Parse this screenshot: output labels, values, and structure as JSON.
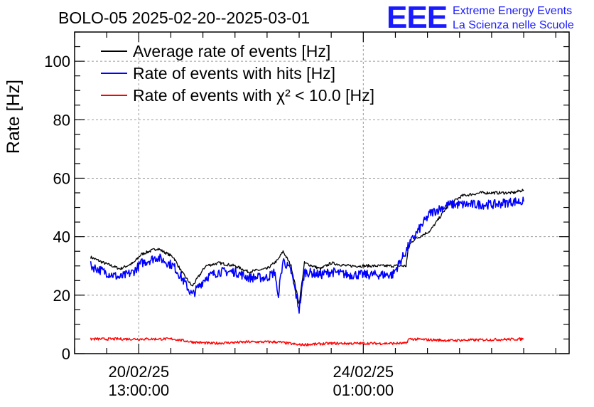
{
  "logo": {
    "mark": "EEE",
    "line1": "Extreme Energy Events",
    "line2": "La Scienza nelle Scuole",
    "color": "#1a1aff"
  },
  "chart_data": {
    "type": "line",
    "title": "BOLO-05 2025-02-20--2025-03-01",
    "ylabel": "Rate [Hz]",
    "xlabel": "",
    "ylim": [
      0,
      110
    ],
    "x_range_hours_note": "",
    "yticks": [
      0,
      20,
      40,
      60,
      80,
      100
    ],
    "xticks": [
      {
        "line1": "20/02/25",
        "line2": "13:00:00",
        "t": "2025-02-20T13:00:00"
      },
      {
        "line1": "24/02/25",
        "line2": "01:00:00",
        "t": "2025-02-24T01:00:00"
      }
    ],
    "grid": true,
    "legend_position": "top-left",
    "series": [
      {
        "name": "Average rate of events [Hz]",
        "color": "#000000",
        "x": [
          "2025-02-19T19:00",
          "2025-02-20T00:00",
          "2025-02-20T06:00",
          "2025-02-20T11:00",
          "2025-02-20T14:00",
          "2025-02-20T20:00",
          "2025-02-21T02:00",
          "2025-02-21T05:00",
          "2025-02-21T09:00",
          "2025-02-21T14:00",
          "2025-02-21T19:00",
          "2025-02-22T01:00",
          "2025-02-22T06:00",
          "2025-02-22T13:00",
          "2025-02-22T17:00",
          "2025-02-22T19:00",
          "2025-02-22T22:00",
          "2025-02-23T01:00",
          "2025-02-23T03:00",
          "2025-02-23T09:00",
          "2025-02-23T13:00",
          "2025-02-23T19:00",
          "2025-02-24T01:00",
          "2025-02-24T07:00",
          "2025-02-24T12:00",
          "2025-02-24T17:00",
          "2025-02-24T18:00",
          "2025-02-24T20:00",
          "2025-02-25T02:00",
          "2025-02-25T09:00",
          "2025-02-25T14:00",
          "2025-02-25T21:00",
          "2025-02-26T02:00",
          "2025-02-26T09:00",
          "2025-02-26T13:00"
        ],
        "y": [
          33,
          31,
          29,
          31,
          34,
          36,
          33,
          28,
          23,
          30,
          31,
          30,
          28,
          29,
          32,
          35,
          30,
          17,
          31,
          29,
          31,
          30,
          30,
          30,
          30,
          30,
          37,
          39,
          42,
          51,
          54,
          55,
          55,
          55,
          56
        ]
      },
      {
        "name": "Rate of events with hits [Hz]",
        "color": "#0000ff",
        "x": [
          "2025-02-19T19:00",
          "2025-02-20T00:00",
          "2025-02-20T06:00",
          "2025-02-20T11:00",
          "2025-02-20T14:00",
          "2025-02-20T20:00",
          "2025-02-21T02:00",
          "2025-02-21T05:00",
          "2025-02-21T09:00",
          "2025-02-21T14:00",
          "2025-02-21T19:00",
          "2025-02-22T01:00",
          "2025-02-22T06:00",
          "2025-02-22T13:00",
          "2025-02-22T16:00",
          "2025-02-22T17:00",
          "2025-02-22T19:00",
          "2025-02-22T22:00",
          "2025-02-23T01:00",
          "2025-02-23T03:00",
          "2025-02-23T09:00",
          "2025-02-23T13:00",
          "2025-02-23T19:00",
          "2025-02-24T01:00",
          "2025-02-24T07:00",
          "2025-02-24T12:00",
          "2025-02-24T17:00",
          "2025-02-24T18:00",
          "2025-02-24T20:00",
          "2025-02-25T02:00",
          "2025-02-25T09:00",
          "2025-02-25T14:00",
          "2025-02-25T21:00",
          "2025-02-26T02:00",
          "2025-02-26T09:00",
          "2025-02-26T13:00"
        ],
        "y": [
          30,
          28,
          26,
          28,
          31,
          33,
          30,
          26,
          20,
          26,
          28,
          28,
          26,
          26,
          28,
          19,
          32,
          28,
          15,
          28,
          27,
          28,
          27,
          27,
          27,
          27,
          35,
          37,
          40,
          48,
          51,
          51,
          51,
          51,
          52,
          52
        ]
      },
      {
        "name": "Rate of events with χ² < 10.0 [Hz]",
        "color": "#ff0000",
        "x": [
          "2025-02-19T19:00",
          "2025-02-20T06:00",
          "2025-02-20T14:00",
          "2025-02-21T02:00",
          "2025-02-21T09:00",
          "2025-02-21T16:00",
          "2025-02-22T06:00",
          "2025-02-22T17:00",
          "2025-02-23T01:00",
          "2025-02-23T13:00",
          "2025-02-24T01:00",
          "2025-02-24T12:00",
          "2025-02-24T17:00",
          "2025-02-24T18:00",
          "2025-02-25T09:00",
          "2025-02-26T13:00"
        ],
        "y": [
          5,
          5,
          5,
          5,
          4,
          3.5,
          4,
          4,
          3,
          3.5,
          3.5,
          3.5,
          3.5,
          5,
          4.5,
          5
        ]
      }
    ]
  }
}
